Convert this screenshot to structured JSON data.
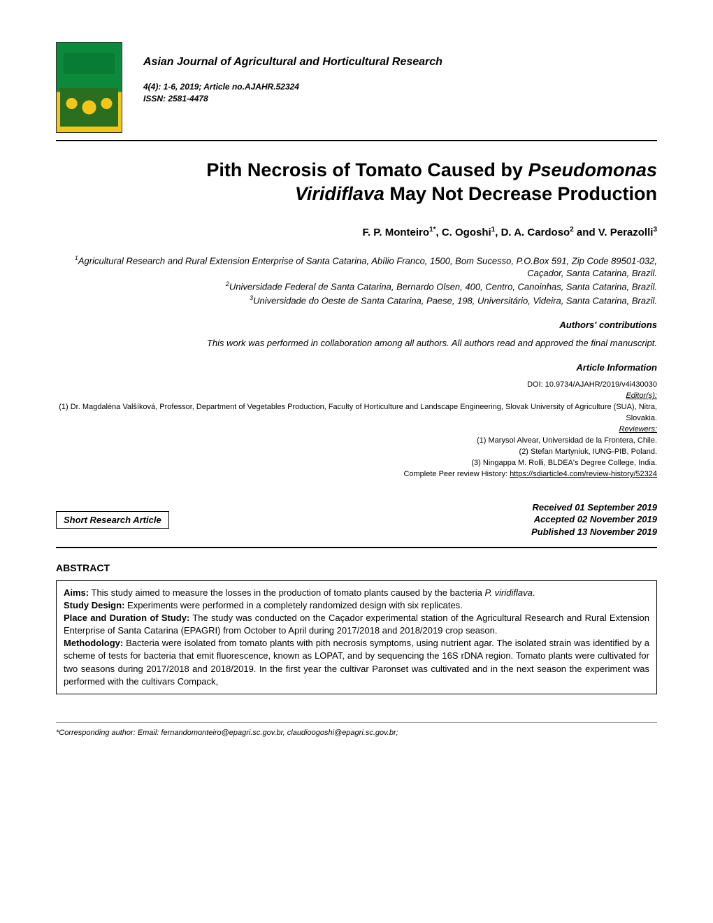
{
  "journal": {
    "name": "Asian Journal of Agricultural and Horticultural Research",
    "issue_line1": "4(4): 1-6, 2019; Article no.AJAHR.52324",
    "issue_line2": "ISSN: 2581-4478"
  },
  "title": {
    "line1": "Pith Necrosis of Tomato Caused by ",
    "line1_em": "Pseudomonas",
    "line2_em": "Viridiflava",
    "line2": " May Not Decrease Production"
  },
  "authors": {
    "a1": "F. P. Monteiro",
    "a1_sup": "1*",
    "a2": "C. Ogoshi",
    "a2_sup": "1",
    "a3": "D. A. Cardoso",
    "a3_sup": "2",
    "a4": "V. Perazolli",
    "a4_sup": "3"
  },
  "affiliations": {
    "aff1_sup": "1",
    "aff1": "Agricultural Research and Rural Extension Enterprise of Santa Catarina, Abílio Franco, 1500, Bom Sucesso, P.O.Box 591, Zip Code 89501-032, Caçador, Santa Catarina, Brazil.",
    "aff2_sup": "2",
    "aff2": "Universidade Federal de Santa Catarina, Bernardo Olsen, 400, Centro, Canoinhas, Santa Catarina, Brazil.",
    "aff3_sup": "3",
    "aff3": "Universidade do Oeste de Santa Catarina, Paese, 198, Universitário, Videira, Santa Catarina, Brazil."
  },
  "contributions": {
    "label": "Authors' contributions",
    "text": "This work was performed in collaboration among all authors. All authors read and approved the final manuscript."
  },
  "article_info": {
    "label": "Article Information",
    "doi": "DOI: 10.9734/AJAHR/2019/v4i430030",
    "editors_label": "Editor(s):",
    "editor1": "(1) Dr. Magdaléna Valšíková, Professor, Department of Vegetables Production, Faculty of Horticulture and Landscape Engineering, Slovak University of Agriculture (SUA), Nitra, Slovakia.",
    "reviewers_label": "Reviewers:",
    "rev1": "(1) Marysol Alvear, Universidad de la Frontera, Chile.",
    "rev2": "(2) Stefan Martyniuk, IUNG-PIB, Poland.",
    "rev3": "(3) Ningappa M. Rolli, BLDEA's Degree College, India.",
    "history_prefix": "Complete Peer review History: ",
    "history_link": "https://sdiarticle4.com/review-history/52324"
  },
  "article_type": "Short Research Article",
  "dates": {
    "received": "Received 01 September 2019",
    "accepted": "Accepted 02 November 2019",
    "published": "Published 13 November 2019"
  },
  "abstract": {
    "heading": "ABSTRACT",
    "aims_label": "Aims:",
    "aims": " This study aimed to measure the losses in the production of tomato plants caused by the bacteria ",
    "aims_em": "P. viridiflava",
    "aims_after": ".",
    "design_label": "Study Design:",
    "design": " Experiments were performed in a completely randomized design with six replicates.",
    "place_label": "Place and Duration of Study:",
    "place": " The study was conducted on the Caçador experimental station of the Agricultural Research and Rural Extension Enterprise of Santa Catarina (EPAGRI) from October to April during 2017/2018 and 2018/2019 crop season.",
    "method_label": "Methodology:",
    "method": " Bacteria were isolated from tomato plants with pith necrosis symptoms, using nutrient agar. The isolated strain was identified by a scheme of tests for bacteria that emit fluorescence, known as LOPAT, and by sequencing the 16S rDNA region. Tomato plants were cultivated for two seasons during 2017/2018 and 2018/2019. In the first year the cultivar Paronset was cultivated and in the next season the experiment was performed with the cultivars Compack,"
  },
  "footer": {
    "text": "*Corresponding author: Email: fernandomonteiro@epagri.sc.gov.br, claudioogoshi@epagri.sc.gov.br;"
  },
  "colors": {
    "text": "#000000",
    "background": "#ffffff",
    "rule": "#000000"
  },
  "typography": {
    "body_font": "Arial",
    "title_pt": 27,
    "authors_pt": 15,
    "body_pt": 13,
    "small_pt": 11
  }
}
